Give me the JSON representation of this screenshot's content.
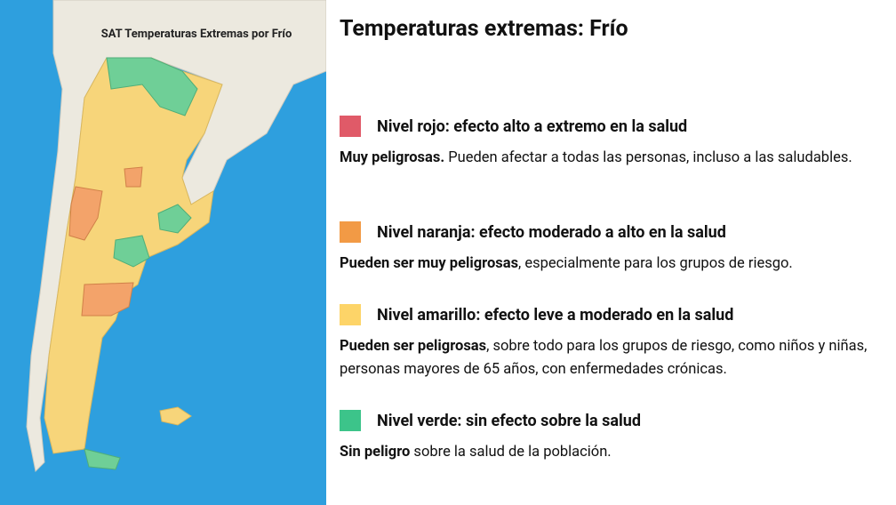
{
  "map": {
    "title": "SAT Temperaturas Extremas por Frío"
  },
  "legend": {
    "heading": "Temperaturas extremas: Frío",
    "levels": [
      {
        "color": "#e05a68",
        "title": "Nivel rojo: efecto alto a extremo en la salud",
        "bold": "Muy peligrosas.",
        "text": " Pueden afectar a todas las personas, incluso a las saludables."
      },
      {
        "color": "#f29a45",
        "title": "Nivel naranja: efecto moderado a alto en la salud",
        "bold": "Pueden ser muy peligrosas",
        "text": ", especialmente para los grupos de riesgo."
      },
      {
        "color": "#fdd468",
        "title": "Nivel amarillo: efecto leve a moderado en la salud",
        "bold": "Pueden ser peligrosas",
        "text": ", sobre todo para los grupos de riesgo, como niños y niñas, personas mayores de 65 años, con enfermedades crónicas."
      },
      {
        "color": "#3cc48a",
        "title": "Nivel verde: sin efecto sobre la salud",
        "bold": "Sin peligro",
        "text": " sobre la salud de la población."
      }
    ]
  }
}
